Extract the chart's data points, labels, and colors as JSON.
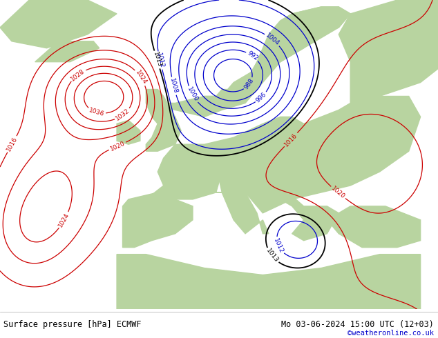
{
  "title_left": "Surface pressure [hPa] ECMWF",
  "title_right": "Mo 03-06-2024 15:00 UTC (12+03)",
  "copyright": "©weatheronline.co.uk",
  "figsize": [
    6.34,
    4.9
  ],
  "dpi": 100,
  "ocean_color": "#e8e8ec",
  "land_color": "#b8d4a0",
  "land_dark_color": "#90a878",
  "isobar_low_color": "#0000cc",
  "isobar_high_color": "#cc0000",
  "isobar_boundary_color": "#000000",
  "label_fontsize": 6.5,
  "footer_text_color": "#000000",
  "copyright_color": "#0000cc"
}
